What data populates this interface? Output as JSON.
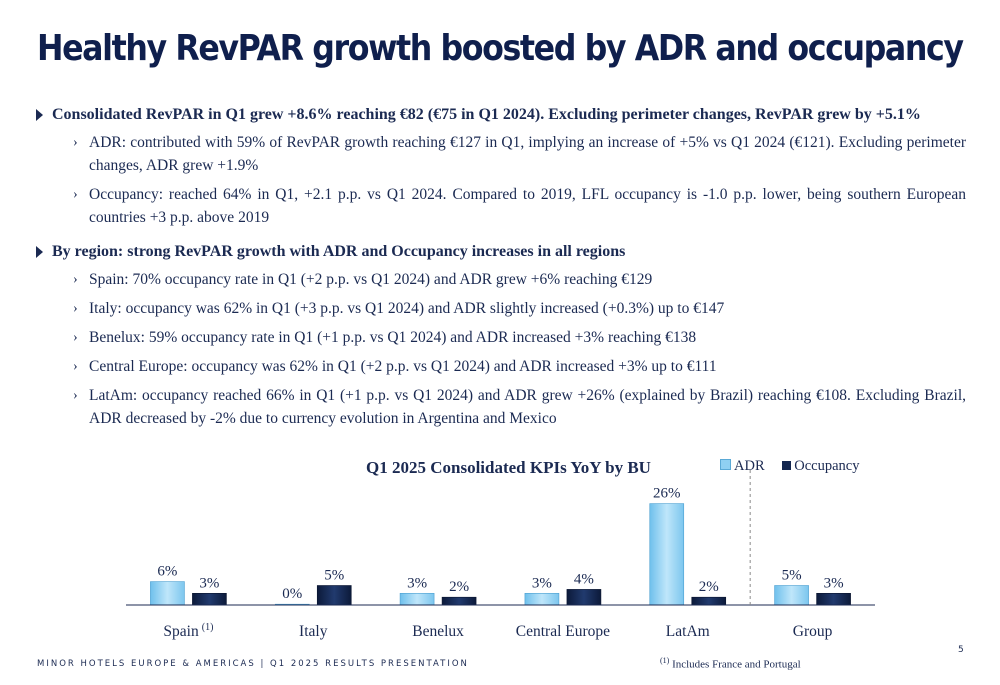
{
  "title": "Healthy RevPAR growth boosted by ADR and occupancy",
  "bullets": {
    "b1": "Consolidated RevPAR in Q1 grew +8.6% reaching €82 (€75 in Q1 2024). Excluding perimeter changes, RevPAR grew by +5.1%",
    "b1_sub1": "ADR: contributed with 59% of RevPAR growth reaching €127 in Q1, implying an increase of +5% vs Q1 2024 (€121). Excluding perimeter changes, ADR grew +1.9%",
    "b1_sub2": "Occupancy: reached 64% in Q1, +2.1 p.p. vs Q1 2024. Compared to 2019, LFL occupancy is -1.0 p.p. lower, being southern European countries +3 p.p. above 2019",
    "b2": "By region: strong RevPAR growth with ADR and Occupancy increases in all regions",
    "b2_sub1": "Spain: 70% occupancy rate in Q1 (+2 p.p. vs Q1 2024) and ADR grew +6% reaching €129",
    "b2_sub2": "Italy: occupancy was 62% in Q1 (+3 p.p. vs Q1 2024) and ADR slightly increased (+0.3%) up to €147",
    "b2_sub3": "Benelux: 59% occupancy rate in Q1 (+1 p.p. vs Q1 2024) and ADR increased +3% reaching €138",
    "b2_sub4": "Central Europe: occupancy was 62% in Q1 (+2 p.p. vs Q1 2024) and ADR increased +3% up to €111",
    "b2_sub5": "LatAm: occupancy reached 66% in Q1 (+1 p.p. vs Q1 2024) and ADR grew +26% (explained by Brazil) reaching €108. Excluding Brazil, ADR decreased by -2% due to currency evolution in Argentina and Mexico"
  },
  "sub_marker": "›",
  "chart_data": {
    "type": "bar",
    "title": "Q1 2025 Consolidated KPIs YoY by BU",
    "categories": [
      "Spain",
      "Italy",
      "Benelux",
      "Central Europe",
      "LatAm",
      "Group"
    ],
    "category_notes": [
      "(1)",
      "",
      "",
      "",
      "",
      ""
    ],
    "series": [
      {
        "name": "ADR",
        "values": [
          6,
          0,
          3,
          3,
          26,
          5
        ],
        "labels": [
          "6%",
          "0%",
          "3%",
          "3%",
          "26%",
          "5%"
        ],
        "color": "#8fd0f2"
      },
      {
        "name": "Occupancy",
        "values": [
          3,
          5,
          2,
          4,
          2,
          3
        ],
        "labels": [
          "3%",
          "5%",
          "2%",
          "4%",
          "2%",
          "3%"
        ],
        "color": "#13264f"
      }
    ],
    "separator_before": "Group",
    "legend": "top-right",
    "grid": false
  },
  "footer": "MINOR HOTELS EUROPE & AMERICAS | Q1 2025 RESULTS PRESENTATION",
  "footnote": {
    "mark": "(1)",
    "text": "Includes France and Portugal"
  },
  "page_number": "5"
}
